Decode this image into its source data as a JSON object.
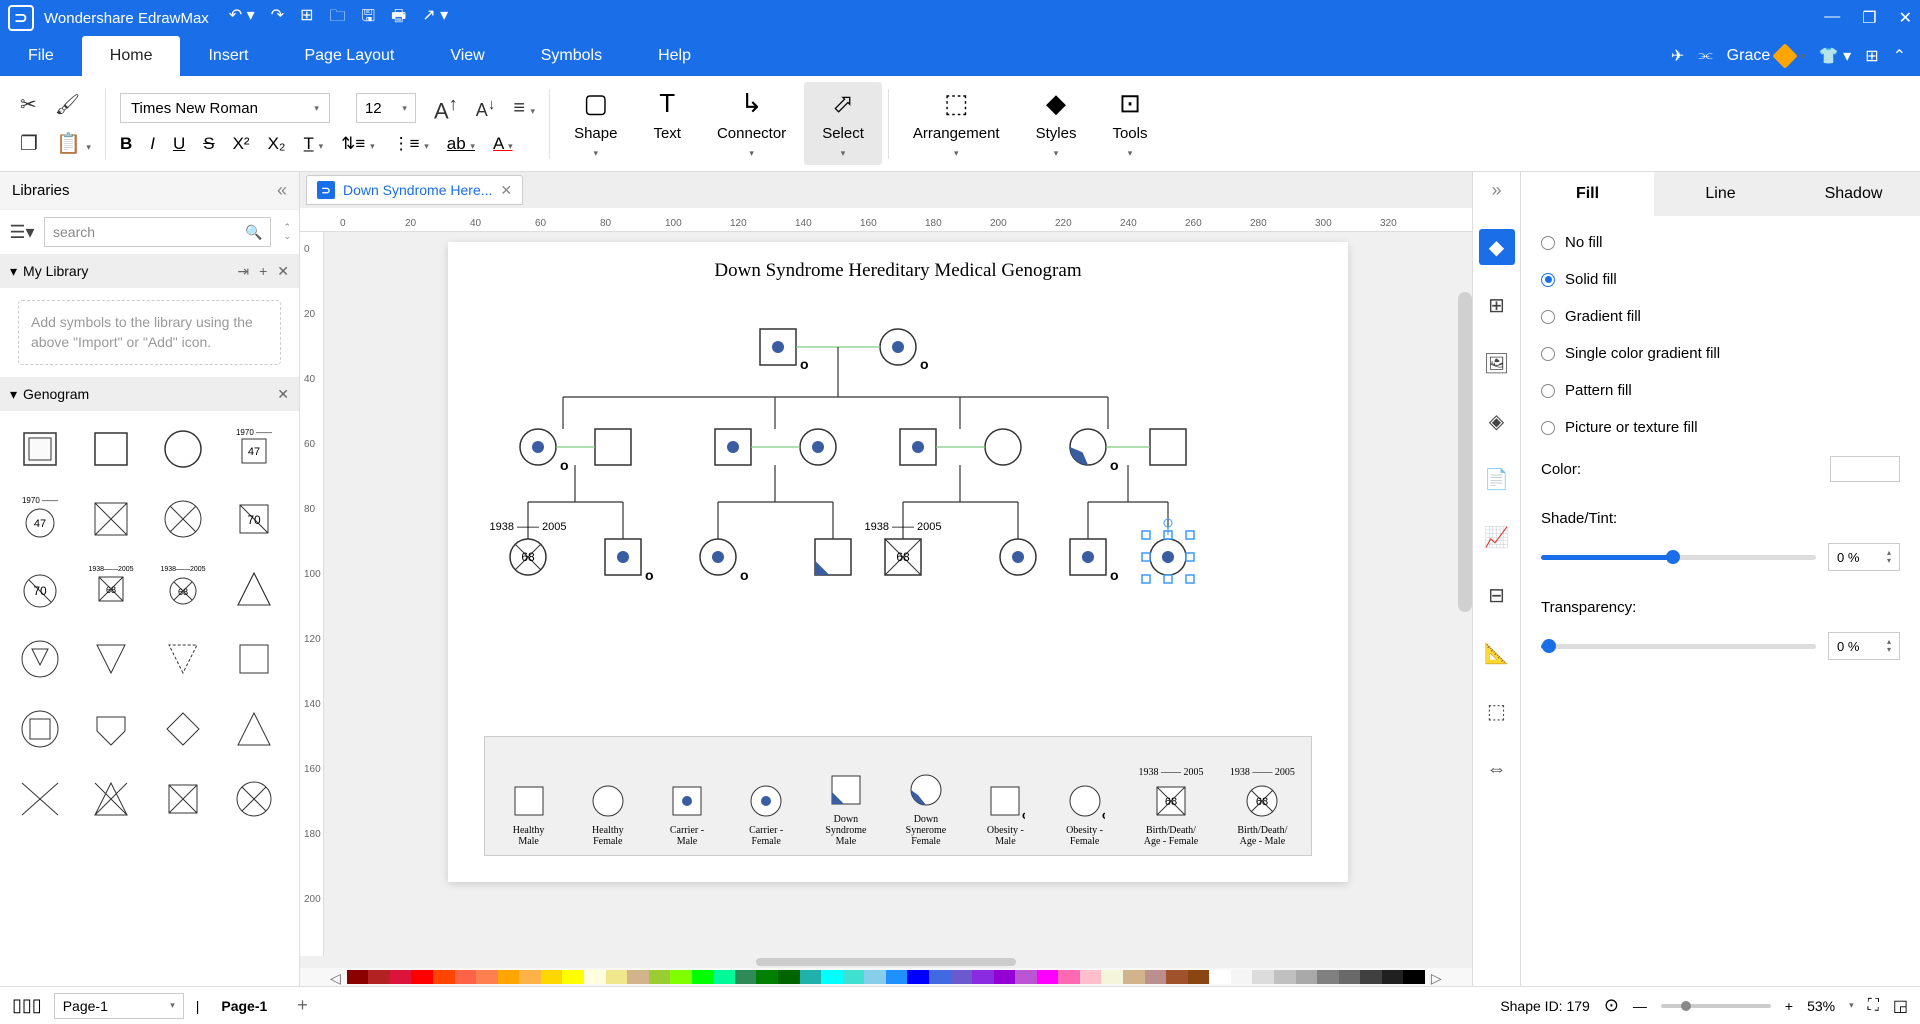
{
  "app": {
    "name": "Wondershare EdrawMax"
  },
  "menu": {
    "items": [
      "File",
      "Home",
      "Insert",
      "Page Layout",
      "View",
      "Symbols",
      "Help"
    ],
    "active": 1,
    "user": "Grace"
  },
  "ribbon": {
    "font": "Times New Roman",
    "size": "12",
    "tools": [
      "Shape",
      "Text",
      "Connector",
      "Select",
      "Arrangement",
      "Styles",
      "Tools"
    ],
    "activeTool": 3
  },
  "libraries": {
    "title": "Libraries",
    "searchPlaceholder": "search",
    "myLibraryTitle": "My Library",
    "myLibraryHint": "Add symbols to the library using the above \"Import\" or \"Add\" icon.",
    "genogramTitle": "Genogram"
  },
  "document": {
    "tabName": "Down Syndrome Here...",
    "pageTitle": "Down Syndrome Hereditary Medical Genogram"
  },
  "rulerH": [
    0,
    20,
    40,
    60,
    80,
    100,
    120,
    140,
    160,
    180,
    200,
    220,
    240,
    260,
    280,
    300,
    320
  ],
  "rulerV": [
    0,
    20,
    40,
    60,
    80,
    100,
    120,
    140,
    160,
    180,
    200
  ],
  "genogram": {
    "stroke": "#333333",
    "carrierFill": "#3a5ca0",
    "line": "#333333",
    "marriageLine": "#7fc97f"
  },
  "legend": {
    "dates1": "1938 —— 2005",
    "dates2": "1938 —— 2005",
    "items": [
      {
        "label": "Healthy\nMale",
        "type": "sq"
      },
      {
        "label": "Healthy\nFemale",
        "type": "ci"
      },
      {
        "label": "Carrier -\nMale",
        "type": "sq-dot"
      },
      {
        "label": "Carrier -\nFemale",
        "type": "ci-dot"
      },
      {
        "label": "Down\nSyndrome\nMale",
        "type": "sq-half"
      },
      {
        "label": "Down\nSynerome\nFemale",
        "type": "ci-half"
      },
      {
        "label": "Obesity -\nMale",
        "type": "sq-o"
      },
      {
        "label": "Obesity -\nFemale",
        "type": "ci-o"
      },
      {
        "label": "Birth/Death/\nAge - Female",
        "type": "sq-x",
        "age": "68"
      },
      {
        "label": "Birth/Death/\nAge - Male",
        "type": "ci-x",
        "age": "68"
      }
    ]
  },
  "genoDates": {
    "left": "1938 —— 2005",
    "mid": "1938 —— 2005"
  },
  "genoAge": "68",
  "colorStrip": [
    "#8b0000",
    "#b22222",
    "#dc143c",
    "#ff0000",
    "#ff4500",
    "#ff6347",
    "#ff7f50",
    "#ffa500",
    "#ffb347",
    "#ffd700",
    "#ffff00",
    "#ffffe0",
    "#f0e68c",
    "#d2b48c",
    "#9acd32",
    "#7fff00",
    "#00ff00",
    "#00fa9a",
    "#2e8b57",
    "#008000",
    "#006400",
    "#20b2aa",
    "#00ffff",
    "#40e0d0",
    "#87ceeb",
    "#1e90ff",
    "#0000ff",
    "#4169e1",
    "#6a5acd",
    "#8a2be2",
    "#9400d3",
    "#ba55d3",
    "#ff00ff",
    "#ff69b4",
    "#ffc0cb",
    "#f5f5dc",
    "#d2b48c",
    "#bc8f8f",
    "#a0522d",
    "#8b4513",
    "#ffffff",
    "#f5f5f5",
    "#dcdcdc",
    "#c0c0c0",
    "#a9a9a9",
    "#808080",
    "#696969",
    "#404040",
    "#202020",
    "#000000"
  ],
  "rightPanel": {
    "tabs": [
      "Fill",
      "Line",
      "Shadow"
    ],
    "activeTab": 0,
    "fillOptions": [
      "No fill",
      "Solid fill",
      "Gradient fill",
      "Single color gradient fill",
      "Pattern fill",
      "Picture or texture fill"
    ],
    "selected": 1,
    "colorLabel": "Color:",
    "shadeLabel": "Shade/Tint:",
    "transLabel": "Transparency:",
    "shadeVal": "0 %",
    "transVal": "0 %",
    "shadePct": 48,
    "transPct": 3
  },
  "status": {
    "pageDropdown": "Page-1",
    "pageTab": "Page-1",
    "shapeId": "Shape ID: 179",
    "zoom": "53%"
  }
}
